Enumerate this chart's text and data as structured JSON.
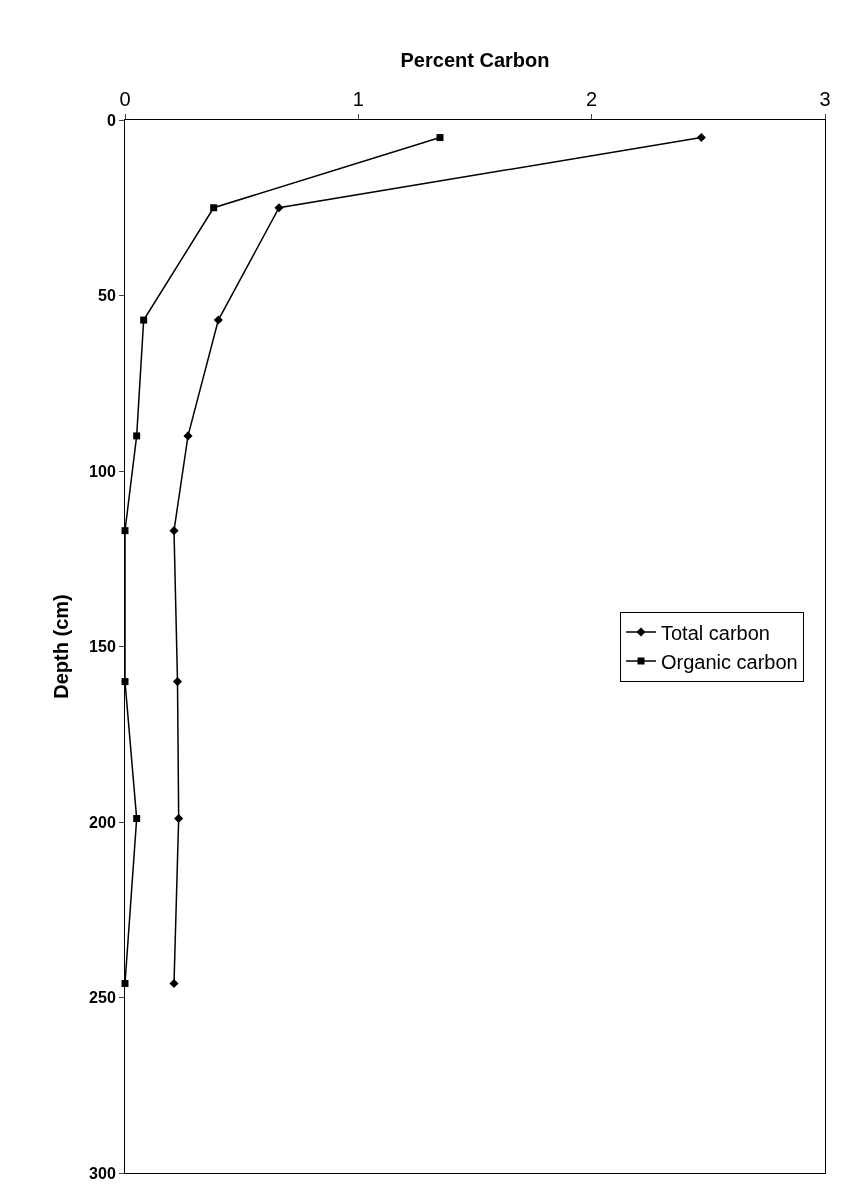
{
  "chart_data": {
    "type": "line",
    "xlabel": "Percent Carbon",
    "ylabel": "Depth (cm)",
    "xlim": [
      0,
      3
    ],
    "xticks": [
      0,
      1,
      2,
      3
    ],
    "ylim": [
      300,
      0
    ],
    "yticks": [
      0,
      50,
      100,
      150,
      200,
      250,
      300
    ],
    "legend": "right",
    "line_style": "solid",
    "series": [
      {
        "name": "Total carbon",
        "color": "#000000",
        "marker": "diamond",
        "x": [
          2.47,
          0.66,
          0.4,
          0.27,
          0.21,
          0.225,
          0.23,
          0.21
        ],
        "values": [
          5,
          25,
          57,
          90,
          117,
          160,
          199,
          246
        ]
      },
      {
        "name": "Organic carbon",
        "color": "#000000",
        "marker": "square",
        "x": [
          1.35,
          0.38,
          0.08,
          0.05,
          0,
          0,
          0.05,
          0
        ],
        "values": [
          5,
          25,
          57,
          90,
          117,
          160,
          199,
          246
        ]
      }
    ]
  }
}
